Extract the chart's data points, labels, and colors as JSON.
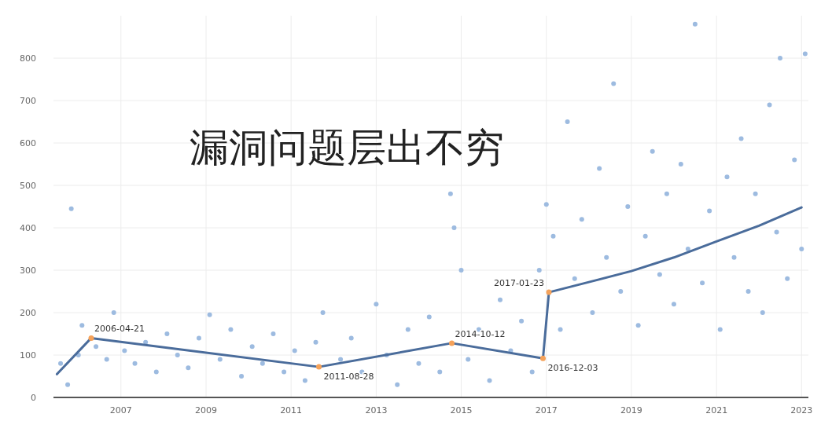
{
  "chart_data": {
    "type": "scatter",
    "xlim": [
      "2005-06",
      "2023-03"
    ],
    "ylim": [
      0,
      900
    ],
    "xticks": [
      "2007",
      "2009",
      "2011",
      "2013",
      "2015",
      "2017",
      "2019",
      "2021",
      "2023"
    ],
    "yticks": [
      0,
      100,
      200,
      300,
      400,
      500,
      600,
      700,
      800
    ],
    "grid": true,
    "series": [
      {
        "color": "#9dbbe0",
        "marker": "circle",
        "x": [
          "2005-08",
          "2005-10",
          "2005-11",
          "2006-01",
          "2006-02",
          "2006-06",
          "2006-09",
          "2006-11",
          "2007-02",
          "2007-05",
          "2007-08",
          "2007-11",
          "2008-02",
          "2008-05",
          "2008-08",
          "2008-11",
          "2009-02",
          "2009-05",
          "2009-08",
          "2009-11",
          "2010-02",
          "2010-05",
          "2010-08",
          "2010-11",
          "2011-02",
          "2011-05",
          "2011-08",
          "2011-10",
          "2011-12",
          "2012-03",
          "2012-06",
          "2012-09",
          "2013-01",
          "2013-04",
          "2013-07",
          "2013-10",
          "2014-01",
          "2014-04",
          "2014-07",
          "2014-10",
          "2014-11",
          "2015-01",
          "2015-03",
          "2015-06",
          "2015-09",
          "2015-12",
          "2016-03",
          "2016-06",
          "2016-09",
          "2016-11",
          "2017-01",
          "2017-03",
          "2017-05",
          "2017-07",
          "2017-09",
          "2017-11",
          "2018-02",
          "2018-04",
          "2018-06",
          "2018-08",
          "2018-10",
          "2018-12",
          "2019-03",
          "2019-05",
          "2019-07",
          "2019-09",
          "2019-11",
          "2020-01",
          "2020-03",
          "2020-05",
          "2020-07",
          "2020-09",
          "2020-11",
          "2021-02",
          "2021-04",
          "2021-06",
          "2021-08",
          "2021-10",
          "2021-12",
          "2022-02",
          "2022-04",
          "2022-06",
          "2022-07",
          "2022-09",
          "2022-11",
          "2023-01",
          "2023-02"
        ],
        "values": [
          80,
          30,
          445,
          100,
          170,
          120,
          90,
          200,
          110,
          80,
          130,
          60,
          150,
          100,
          70,
          140,
          195,
          90,
          160,
          50,
          120,
          80,
          150,
          60,
          110,
          40,
          130,
          200,
          50,
          90,
          140,
          60,
          220,
          100,
          30,
          160,
          80,
          190,
          60,
          480,
          400,
          300,
          90,
          160,
          40,
          230,
          110,
          180,
          60,
          300,
          455,
          380,
          160,
          650,
          280,
          420,
          200,
          540,
          330,
          740,
          250,
          450,
          170,
          380,
          580,
          290,
          480,
          220,
          550,
          350,
          880,
          270,
          440,
          160,
          520,
          330,
          610,
          250,
          480,
          200,
          690,
          390,
          800,
          280,
          560,
          350,
          810
        ]
      },
      {
        "type": "line",
        "color": "#4a6c9b",
        "x": [
          "2005-07",
          "2006-04-21",
          "2011-08-28",
          "2014-10-12",
          "2016-12-03",
          "2017-01-23",
          "2018-01",
          "2019-01",
          "2020-01",
          "2021-01",
          "2022-01",
          "2023-01"
        ],
        "values": [
          55,
          140,
          72,
          128,
          92,
          248,
          272,
          298,
          330,
          368,
          405,
          448
        ]
      }
    ],
    "annotations": [
      "漏洞问题层出不穷",
      {
        "text": "2006-04-21",
        "x": "2006-04-21",
        "y": 140
      },
      {
        "text": "2011-08-28",
        "x": "2011-08-28",
        "y": 72
      },
      {
        "text": "2014-10-12",
        "x": "2014-10-12",
        "y": 128
      },
      {
        "text": "2016-12-03",
        "x": "2016-12-03",
        "y": 92
      },
      {
        "text": "2017-01-23",
        "x": "2017-01-23",
        "y": 248
      }
    ]
  }
}
